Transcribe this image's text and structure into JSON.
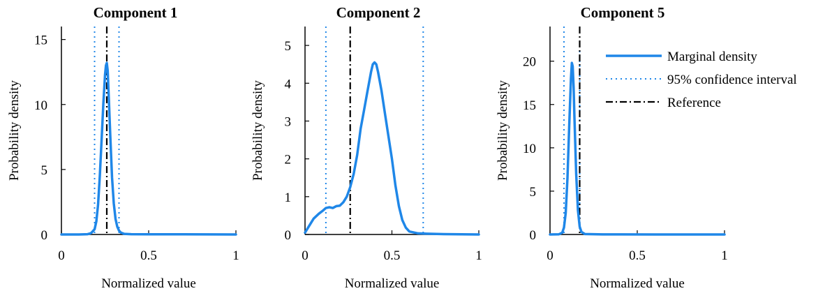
{
  "legend": {
    "placement": "top-right of third panel",
    "density_label": "Marginal density",
    "ci_label": "95% confidence interval",
    "ref_label": "Reference"
  },
  "colors": {
    "density": "#1f87e8",
    "ci": "#1f87e8",
    "reference": "#000000",
    "axis": "#000000"
  },
  "chart_data": [
    {
      "type": "line",
      "title": "Component 1",
      "xlabel": "Normalized value",
      "ylabel": "Probability density",
      "xlim": [
        0,
        1
      ],
      "ylim": [
        0,
        16
      ],
      "xticks": [
        0,
        0.5,
        1
      ],
      "xtick_labels": [
        "0",
        "0.5",
        "1"
      ],
      "yticks": [
        0,
        5,
        10,
        15
      ],
      "ytick_labels": [
        "0",
        "5",
        "10",
        "15"
      ],
      "ci": [
        0.19,
        0.33
      ],
      "reference": 0.26,
      "grid": false,
      "series": [
        {
          "name": "Marginal density",
          "x": [
            0,
            0.1,
            0.15,
            0.17,
            0.19,
            0.2,
            0.21,
            0.22,
            0.23,
            0.24,
            0.25,
            0.255,
            0.26,
            0.265,
            0.27,
            0.28,
            0.29,
            0.3,
            0.31,
            0.32,
            0.33,
            0.34,
            0.36,
            0.4,
            0.5,
            0.7,
            1.0
          ],
          "y": [
            0,
            0,
            0.02,
            0.1,
            0.4,
            1.0,
            2.3,
            4.5,
            7.2,
            10.0,
            12.3,
            13.0,
            13.2,
            12.6,
            11.0,
            7.6,
            4.4,
            2.4,
            1.2,
            0.6,
            0.3,
            0.15,
            0.05,
            0.02,
            0.01,
            0.01,
            0
          ]
        }
      ]
    },
    {
      "type": "line",
      "title": "Component 2",
      "xlabel": "Normalized value",
      "ylabel": "Probability density",
      "xlim": [
        0,
        1
      ],
      "ylim": [
        0,
        5.5
      ],
      "xticks": [
        0,
        0.5,
        1
      ],
      "xtick_labels": [
        "0",
        "0.5",
        "1"
      ],
      "yticks": [
        0,
        1,
        2,
        3,
        4,
        5
      ],
      "ytick_labels": [
        "0",
        "1",
        "2",
        "3",
        "4",
        "5"
      ],
      "ci": [
        0.12,
        0.68
      ],
      "reference": 0.26,
      "grid": false,
      "series": [
        {
          "name": "Marginal density",
          "x": [
            0,
            0.02,
            0.05,
            0.08,
            0.1,
            0.12,
            0.14,
            0.16,
            0.18,
            0.2,
            0.22,
            0.24,
            0.26,
            0.28,
            0.3,
            0.32,
            0.34,
            0.36,
            0.38,
            0.39,
            0.4,
            0.41,
            0.42,
            0.44,
            0.46,
            0.48,
            0.5,
            0.52,
            0.54,
            0.56,
            0.58,
            0.6,
            0.65,
            0.7,
            0.8,
            1.0
          ],
          "y": [
            0.05,
            0.2,
            0.42,
            0.55,
            0.62,
            0.7,
            0.72,
            0.7,
            0.75,
            0.76,
            0.85,
            1.0,
            1.25,
            1.6,
            2.1,
            2.8,
            3.3,
            3.8,
            4.3,
            4.5,
            4.55,
            4.5,
            4.3,
            3.8,
            3.2,
            2.6,
            2.0,
            1.3,
            0.75,
            0.38,
            0.18,
            0.08,
            0.03,
            0.02,
            0.01,
            0
          ]
        }
      ]
    },
    {
      "type": "line",
      "title": "Component 5",
      "xlabel": "Normalized value",
      "ylabel": "Probability density",
      "xlim": [
        0,
        1
      ],
      "ylim": [
        0,
        24
      ],
      "xticks": [
        0,
        0.5,
        1
      ],
      "xtick_labels": [
        "0",
        "0.5",
        "1"
      ],
      "yticks": [
        0,
        5,
        10,
        15,
        20
      ],
      "ytick_labels": [
        "0",
        "5",
        "10",
        "15",
        "20"
      ],
      "ci": [
        0.08,
        0.17
      ],
      "reference": 0.17,
      "grid": false,
      "series": [
        {
          "name": "Marginal density",
          "x": [
            0,
            0.05,
            0.07,
            0.08,
            0.09,
            0.1,
            0.11,
            0.12,
            0.125,
            0.13,
            0.135,
            0.14,
            0.15,
            0.16,
            0.17,
            0.18,
            0.2,
            0.3,
            0.6,
            1.0
          ],
          "y": [
            0,
            0.02,
            0.2,
            0.8,
            2.5,
            6.5,
            12.5,
            18.0,
            19.8,
            19.4,
            17.0,
            13.5,
            7.0,
            2.8,
            0.9,
            0.3,
            0.05,
            0.01,
            0,
            0
          ]
        }
      ]
    }
  ]
}
